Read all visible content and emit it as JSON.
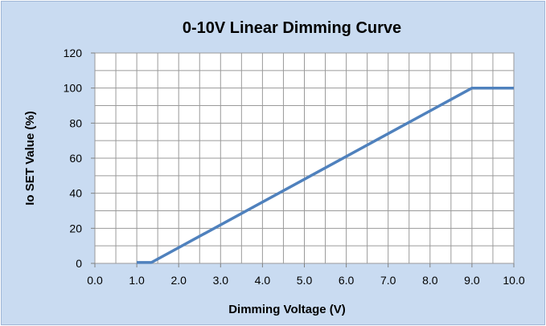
{
  "chart_data": {
    "type": "line",
    "title": "0-10V Linear Dimming Curve",
    "xlabel": "Dimming Voltage (V)",
    "ylabel": "Io SET Value (%)",
    "xlim": [
      0,
      10
    ],
    "ylim": [
      0,
      120
    ],
    "x_ticks": [
      "0.0",
      "1.0",
      "2.0",
      "3.0",
      "4.0",
      "5.0",
      "6.0",
      "7.0",
      "8.0",
      "9.0",
      "10.0"
    ],
    "y_ticks": [
      "0",
      "20",
      "40",
      "60",
      "80",
      "100",
      "120"
    ],
    "grid": true,
    "legend": "none",
    "series": [
      {
        "x": [
          1.0,
          1.35,
          9.0,
          10.0
        ],
        "y": [
          0.5,
          0.5,
          100,
          100
        ],
        "color": "#4f81bd"
      }
    ]
  }
}
